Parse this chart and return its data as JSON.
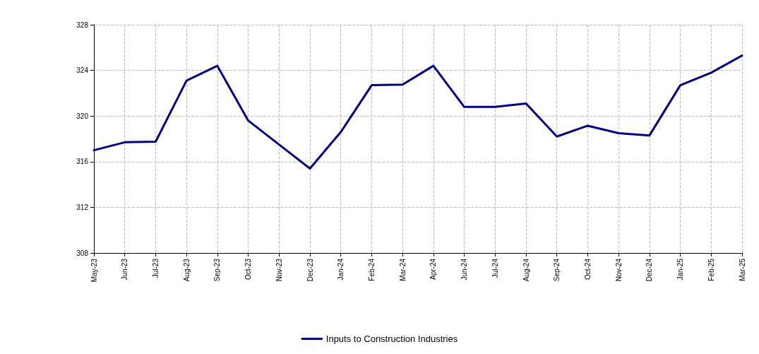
{
  "chart_data": {
    "type": "line",
    "categories": [
      "May-23",
      "Jun-23",
      "Jul-23",
      "Aug-23",
      "Sep-23",
      "Oct-23",
      "Nov-23",
      "Dec-23",
      "Jan-24",
      "Feb-24",
      "Mar-24",
      "Apr-24",
      "Jun-24",
      "Jul-24",
      "Aug-24",
      "Sep-24",
      "Oct-24",
      "Nov-24",
      "Dec-24",
      "Jan-25",
      "Feb-25",
      "Mar-25"
    ],
    "series": [
      {
        "name": "Inputs to Construction Industries",
        "color": "#000080",
        "values": [
          317.0,
          317.7,
          317.75,
          323.1,
          324.4,
          319.6,
          317.5,
          315.4,
          318.6,
          322.7,
          322.75,
          324.4,
          320.8,
          320.8,
          321.1,
          318.2,
          319.15,
          318.5,
          318.3,
          322.7,
          323.8,
          325.3
        ]
      }
    ],
    "ylim": [
      308,
      328
    ],
    "yticks": [
      308,
      312,
      316,
      320,
      324,
      328
    ],
    "grid": true,
    "legend": "bottom",
    "marker": "none",
    "line_style": "solid"
  }
}
